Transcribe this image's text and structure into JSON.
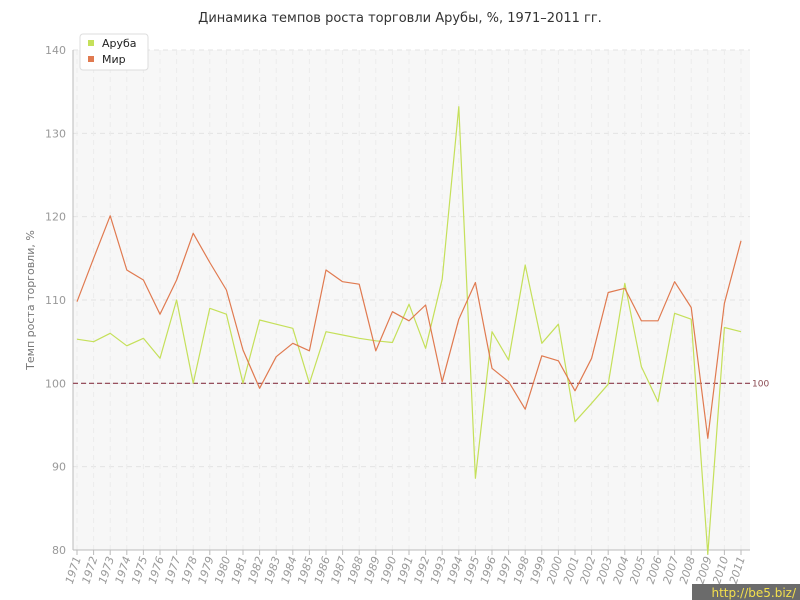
{
  "chart_data": {
    "type": "line",
    "title": "Динамика темпов роста торговли Арубы, %, 1971–2011 гг.",
    "ylabel": "Темп роста торговли, %",
    "xlabel": "",
    "ylim": [
      80,
      140
    ],
    "yticks": [
      80,
      90,
      100,
      110,
      120,
      130,
      140
    ],
    "grid": true,
    "legend_position": "top-left",
    "reference_line": {
      "value": 100,
      "label": "100",
      "color": "#8b3a4a"
    },
    "categories": [
      "1971",
      "1972",
      "1973",
      "1974",
      "1975",
      "1976",
      "1977",
      "1978",
      "1979",
      "1980",
      "1981",
      "1982",
      "1983",
      "1984",
      "1985",
      "1986",
      "1987",
      "1988",
      "1989",
      "1990",
      "1991",
      "1992",
      "1993",
      "1994",
      "1995",
      "1996",
      "1997",
      "1998",
      "1999",
      "2000",
      "2001",
      "2002",
      "2003",
      "2004",
      "2005",
      "2006",
      "2007",
      "2008",
      "2009",
      "2010",
      "2011"
    ],
    "series": [
      {
        "name": "Аруба",
        "color": "#c5e05a",
        "values": [
          105.3,
          105.0,
          106.0,
          104.5,
          105.4,
          103.0,
          110.0,
          100.0,
          109.0,
          108.3,
          100.0,
          107.6,
          107.1,
          106.6,
          100.0,
          106.2,
          105.8,
          105.4,
          105.1,
          104.9,
          109.5,
          104.2,
          112.5,
          133.2,
          88.6,
          106.2,
          102.8,
          114.2,
          104.8,
          107.1,
          95.4,
          97.6,
          99.9,
          112.0,
          102.0,
          97.8,
          108.4,
          107.7,
          79.5,
          106.7,
          106.2
        ]
      },
      {
        "name": "Мир",
        "color": "#e07a50",
        "values": [
          109.8,
          115.0,
          120.1,
          113.6,
          112.4,
          108.3,
          112.4,
          118.0,
          114.5,
          111.2,
          104.0,
          99.4,
          103.2,
          104.8,
          103.9,
          113.6,
          112.2,
          111.9,
          103.9,
          108.6,
          107.5,
          109.4,
          100.2,
          107.7,
          112.1,
          101.8,
          100.2,
          96.9,
          103.3,
          102.7,
          99.1,
          103.0,
          110.9,
          111.4,
          107.5,
          107.5,
          112.2,
          109.1,
          93.4,
          109.6,
          117.1
        ]
      }
    ]
  },
  "watermark": "http://be5.biz/"
}
